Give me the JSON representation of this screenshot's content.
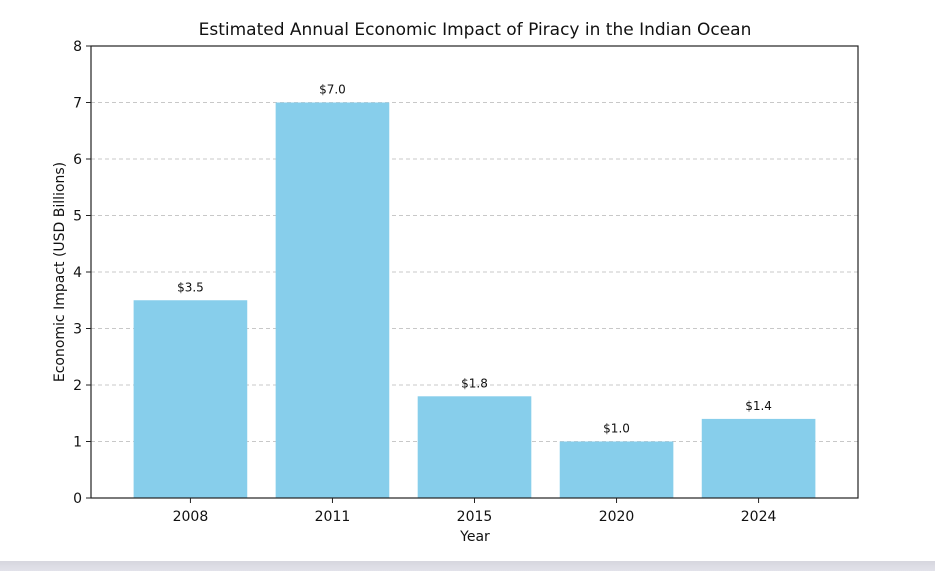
{
  "chart_data": {
    "type": "bar",
    "title": "Estimated Annual Economic Impact of Piracy in the Indian Ocean",
    "xlabel": "Year",
    "ylabel": "Economic Impact (USD Billions)",
    "categories": [
      "2008",
      "2011",
      "2015",
      "2020",
      "2024"
    ],
    "values": [
      3.5,
      7.0,
      1.8,
      1.0,
      1.4
    ],
    "data_labels": [
      "$3.5",
      "$7.0",
      "$1.8",
      "$1.0",
      "$1.4"
    ],
    "ylim": [
      0,
      8
    ],
    "yticks": [
      0,
      1,
      2,
      3,
      4,
      5,
      6,
      7,
      8
    ],
    "grid": true,
    "grid_axis": "y",
    "legend": "none",
    "bar_color": "#87ceeb"
  }
}
